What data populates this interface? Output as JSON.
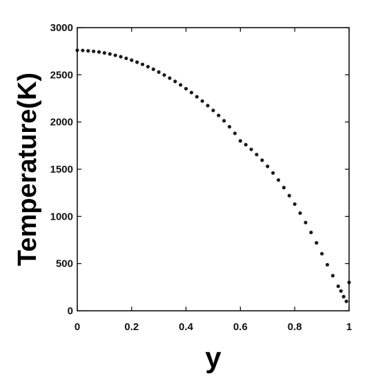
{
  "chart_data": {
    "type": "scatter",
    "title": "",
    "xlabel": "y",
    "ylabel": "Temperature(K)",
    "xlim": [
      0,
      1
    ],
    "ylim": [
      0,
      3000
    ],
    "x_ticks": [
      0,
      0.2,
      0.4,
      0.6,
      0.8,
      1
    ],
    "x_tick_labels": [
      "0",
      "0.2",
      "0.4",
      "0.6",
      "0.8",
      "1"
    ],
    "y_ticks": [
      0,
      500,
      1000,
      1500,
      2000,
      2500,
      3000
    ],
    "y_tick_labels": [
      "0",
      "500",
      "1000",
      "1500",
      "2000",
      "2500",
      "3000"
    ],
    "grid": false,
    "legend": "none",
    "marker_color": "#1a1a1a",
    "series": [
      {
        "x": [
          0,
          0.02,
          0.04,
          0.06,
          0.08,
          0.1,
          0.12,
          0.14,
          0.16,
          0.18,
          0.2,
          0.22,
          0.24,
          0.26,
          0.28,
          0.3,
          0.32,
          0.34,
          0.36,
          0.38,
          0.4,
          0.42,
          0.44,
          0.46,
          0.48,
          0.5,
          0.52,
          0.54,
          0.56,
          0.58,
          0.6,
          0.62,
          0.64,
          0.66,
          0.68,
          0.7,
          0.72,
          0.74,
          0.76,
          0.78,
          0.8,
          0.82,
          0.84,
          0.86,
          0.88,
          0.9,
          0.92,
          0.94,
          0.96,
          0.97,
          0.98,
          0.99,
          1.0
        ],
        "y": [
          2760,
          2758,
          2754,
          2749,
          2742,
          2732,
          2721,
          2707,
          2692,
          2675,
          2655,
          2634,
          2611,
          2586,
          2559,
          2529,
          2498,
          2465,
          2430,
          2393,
          2353,
          2312,
          2268,
          2222,
          2174,
          2123,
          2070,
          2013,
          1950,
          1880,
          1800,
          1760,
          1710,
          1655,
          1595,
          1530,
          1460,
          1385,
          1305,
          1220,
          1130,
          1035,
          935,
          830,
          720,
          605,
          488,
          372,
          260,
          210,
          150,
          100,
          300
        ]
      }
    ]
  }
}
